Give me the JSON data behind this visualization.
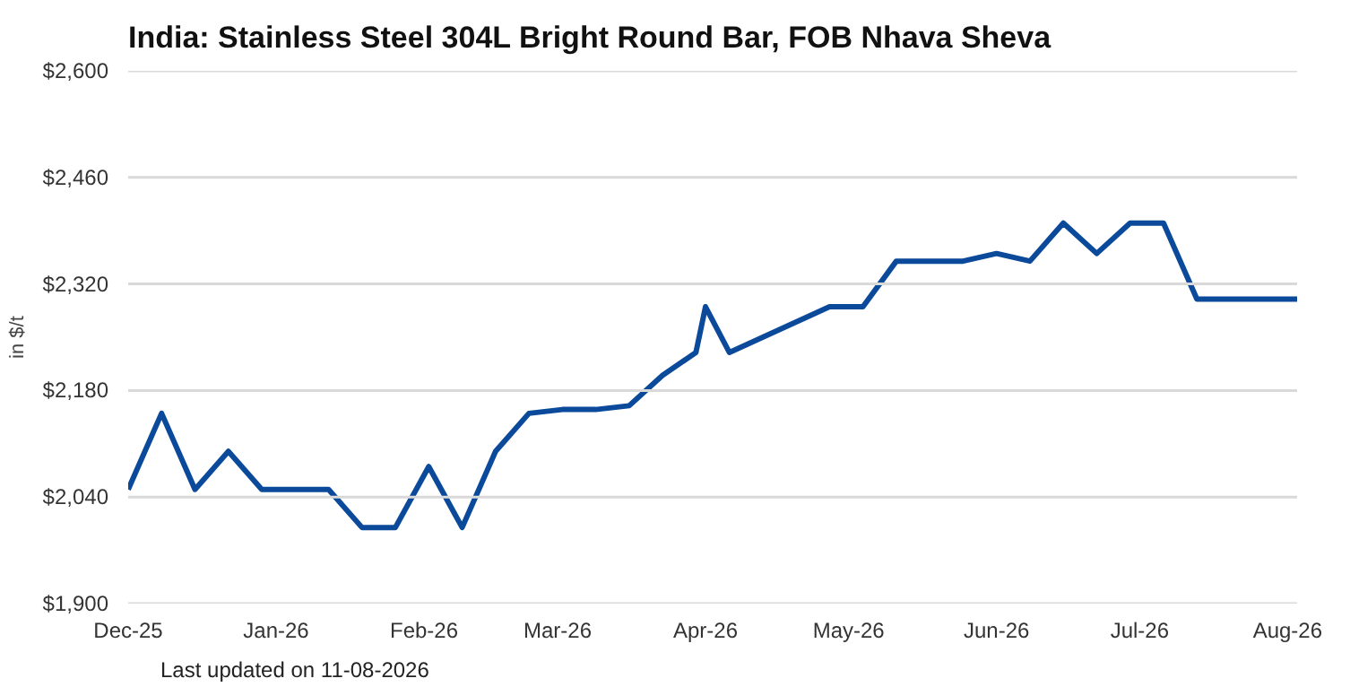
{
  "chart_data": {
    "type": "line",
    "title": "India: Stainless Steel 304L Bright Round Bar, FOB Nhava Sheva",
    "ylabel": "in $/t",
    "annotations": [
      "Last updated on 11-08-2026"
    ],
    "x": [
      "2025-12-01",
      "2025-12-08",
      "2025-12-15",
      "2025-12-22",
      "2025-12-29",
      "2026-01-05",
      "2026-01-12",
      "2026-01-19",
      "2026-01-26",
      "2026-02-02",
      "2026-02-09",
      "2026-02-16",
      "2026-02-23",
      "2026-03-02",
      "2026-03-09",
      "2026-03-16",
      "2026-03-23",
      "2026-03-30",
      "2026-04-01",
      "2026-04-06",
      "2026-04-27",
      "2026-05-04",
      "2026-05-11",
      "2026-05-25",
      "2026-06-01",
      "2026-06-08",
      "2026-06-15",
      "2026-06-22",
      "2026-06-29",
      "2026-07-06",
      "2026-07-13",
      "2026-08-03"
    ],
    "series": [
      {
        "color": "#0b4a9b",
        "values": [
          2050,
          2150,
          2050,
          2100,
          2050,
          2050,
          2050,
          2000,
          2000,
          2080,
          2000,
          2100,
          2150,
          2155,
          2155,
          2160,
          2200,
          2230,
          2290,
          2230,
          2290,
          2290,
          2350,
          2350,
          2360,
          2350,
          2400,
          2360,
          2400,
          2400,
          2300,
          2300
        ]
      }
    ],
    "xlim": [
      "2025-12-01",
      "2026-08-03"
    ],
    "xticks": [
      {
        "value": "2025-12-01",
        "label": "Dec-25"
      },
      {
        "value": "2026-01-01",
        "label": "Jan-26"
      },
      {
        "value": "2026-02-01",
        "label": "Feb-26"
      },
      {
        "value": "2026-03-01",
        "label": "Mar-26"
      },
      {
        "value": "2026-04-01",
        "label": "Apr-26"
      },
      {
        "value": "2026-05-01",
        "label": "May-26"
      },
      {
        "value": "2026-06-01",
        "label": "Jun-26"
      },
      {
        "value": "2026-07-01",
        "label": "Jul-26"
      },
      {
        "value": "2026-08-01",
        "label": "Aug-26"
      }
    ],
    "ylim": [
      1900,
      2600
    ],
    "yticks": [
      {
        "value": 1900,
        "label": "$1,900"
      },
      {
        "value": 2040,
        "label": "$2,040"
      },
      {
        "value": 2180,
        "label": "$2,180"
      },
      {
        "value": 2320,
        "label": "$2,320"
      },
      {
        "value": 2460,
        "label": "$2,460"
      },
      {
        "value": 2600,
        "label": "$2,600"
      }
    ],
    "grid": "y",
    "marker": "none",
    "line_style": "solid"
  }
}
